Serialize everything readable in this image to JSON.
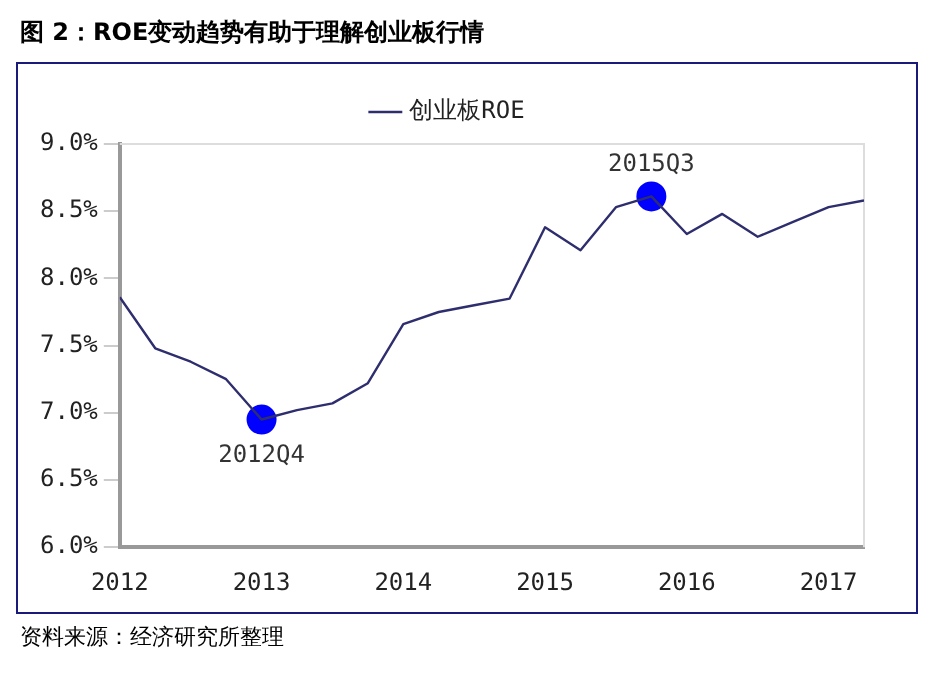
{
  "chart_data": {
    "type": "line",
    "title": "图 2：ROE变动趋势有助于理解创业板行情",
    "x": [
      2012,
      2012.25,
      2012.5,
      2012.75,
      2013,
      2013.25,
      2013.5,
      2013.75,
      2014,
      2014.25,
      2014.5,
      2014.75,
      2015,
      2015.25,
      2015.5,
      2015.75,
      2016,
      2016.25,
      2016.5,
      2016.75,
      2017,
      2017.25
    ],
    "series": [
      {
        "name": "创业板ROE",
        "color": "#2e2e6e",
        "marker": "none",
        "values": [
          7.86,
          7.48,
          7.38,
          7.25,
          6.95,
          7.02,
          7.07,
          7.22,
          7.66,
          7.75,
          7.8,
          7.85,
          8.38,
          8.21,
          8.53,
          8.61,
          8.33,
          8.48,
          8.31,
          8.42,
          8.53,
          8.58
        ]
      },
      {
        "type": "scatter",
        "color": "#0000ff",
        "marker": "circle",
        "x": [
          2013,
          2015.75
        ],
        "values": [
          6.95,
          8.61
        ]
      }
    ],
    "xlim": [
      2012,
      2017.25
    ],
    "xticks": [
      2012,
      2013,
      2014,
      2015,
      2016,
      2017
    ],
    "ylim": [
      6,
      9
    ],
    "yticks": [
      {
        "value": 6,
        "label": "6.0%"
      },
      {
        "value": 6.5,
        "label": "6.5%"
      },
      {
        "value": 7,
        "label": "7.0%"
      },
      {
        "value": 7.5,
        "label": "7.5%"
      },
      {
        "value": 8,
        "label": "8.0%"
      },
      {
        "value": 8.5,
        "label": "8.5%"
      },
      {
        "value": 9,
        "label": "9.0%"
      }
    ],
    "grid": false,
    "legend": "top",
    "line_style": "solid",
    "annotations": [
      {
        "text": "2012Q4",
        "x": 2013,
        "y": 6.95
      },
      {
        "text": "2015Q3",
        "x": 2015.75,
        "y": 8.61
      },
      "资料来源：经济研究所整理"
    ]
  }
}
